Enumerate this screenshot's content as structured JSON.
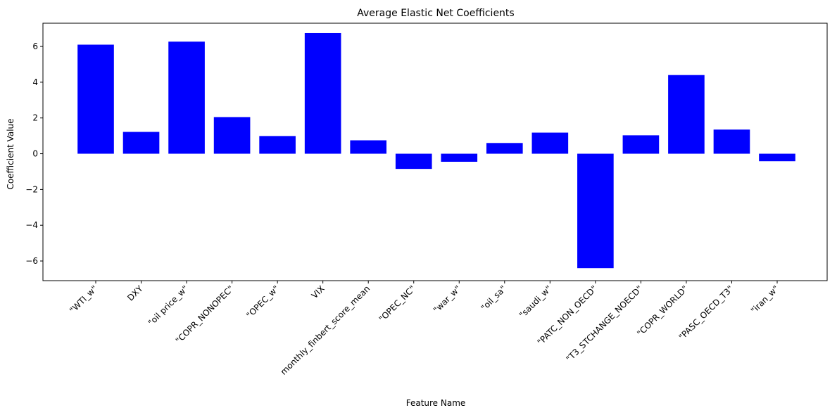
{
  "chart_data": {
    "type": "bar",
    "title": "Average Elastic Net Coefficients",
    "xlabel": "Feature Name",
    "ylabel": "Coefficient Value",
    "categories": [
      "\"WTI_w\"",
      "DXY",
      "\"oil price_w\"",
      "\"COPR_NONOPEC\"",
      "\"OPEC_w\"",
      "VIX",
      "monthly_finbert_score_mean",
      "\"OPEC_NC\"",
      "\"war_w\"",
      "\"oil_sa\"",
      "\"saudi_w\"",
      "\"PATC_NON_OECD\"",
      "\"T3_STCHANGE_NOECD\"",
      "\"COPR_WORLD\"",
      "\"PASC_OECD_T3\"",
      "\"iran_w\""
    ],
    "values": [
      6.1,
      1.22,
      6.27,
      2.05,
      0.99,
      6.75,
      0.75,
      -0.85,
      -0.45,
      0.6,
      1.18,
      -6.4,
      1.03,
      4.4,
      1.35,
      -0.42
    ],
    "ylim": [
      -7.1,
      7.3
    ],
    "yticks": [
      -6,
      -4,
      -2,
      0,
      2,
      4,
      6
    ],
    "bar_color": "#0000ff",
    "grid": false,
    "legend": "none"
  }
}
